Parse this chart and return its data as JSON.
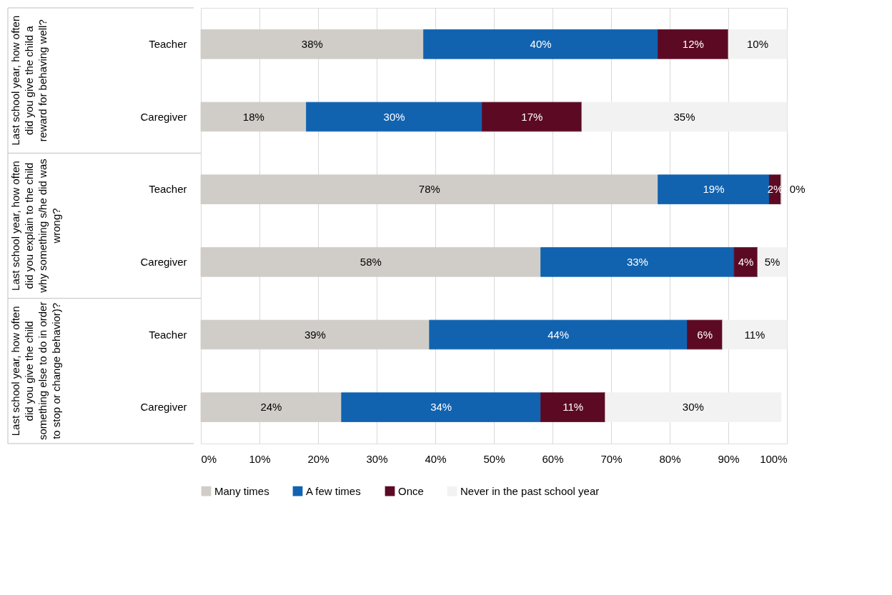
{
  "chart_data": {
    "type": "bar",
    "orientation": "horizontal",
    "stacked": true,
    "categories": [
      "Teacher",
      "Caregiver",
      "Teacher",
      "Caregiver",
      "Teacher",
      "Caregiver"
    ],
    "series": [
      {
        "name": "Many times",
        "color": "#d0cdc8",
        "values": [
          38,
          18,
          78,
          58,
          39,
          24
        ],
        "value_labels": [
          "38%",
          "18%",
          "78%",
          "58%",
          "39%",
          "24%"
        ]
      },
      {
        "name": "A few times",
        "color": "#1163b0",
        "values": [
          40,
          30,
          19,
          33,
          44,
          34
        ],
        "value_labels": [
          "40%",
          "30%",
          "19%",
          "33%",
          "44%",
          "34%"
        ]
      },
      {
        "name": "Once",
        "color": "#5c0a24",
        "values": [
          12,
          17,
          2,
          4,
          6,
          11
        ],
        "value_labels": [
          "12%",
          "17%",
          "2%",
          "4%",
          "6%",
          "11%"
        ]
      },
      {
        "name": "Never in the past school year",
        "color": "#f2f2f2",
        "values": [
          10,
          35,
          0,
          5,
          11,
          30
        ],
        "value_labels": [
          "10%",
          "35%",
          "0%",
          "5%",
          "11%",
          "30%"
        ]
      }
    ],
    "xlim": [
      0,
      100
    ],
    "xticks": [
      {
        "value": 0,
        "label": "0%"
      },
      {
        "value": 10,
        "label": "10%"
      },
      {
        "value": 20,
        "label": "20%"
      },
      {
        "value": 30,
        "label": "30%"
      },
      {
        "value": 40,
        "label": "40%"
      },
      {
        "value": 50,
        "label": "50%"
      },
      {
        "value": 60,
        "label": "60%"
      },
      {
        "value": 70,
        "label": "70%"
      },
      {
        "value": 80,
        "label": "80%"
      },
      {
        "value": 90,
        "label": "90%"
      },
      {
        "value": 100,
        "label": "100%"
      }
    ],
    "annotations": [
      "Last school year, how often did you give the child a reward for behaving well?",
      "Last school year, how often did you explain to the child why something s/he did was wrong?",
      "Last school year, how often did you give the child something else to do in order to stop or change behavior)?"
    ],
    "grid": "x",
    "legend": "bottom"
  }
}
